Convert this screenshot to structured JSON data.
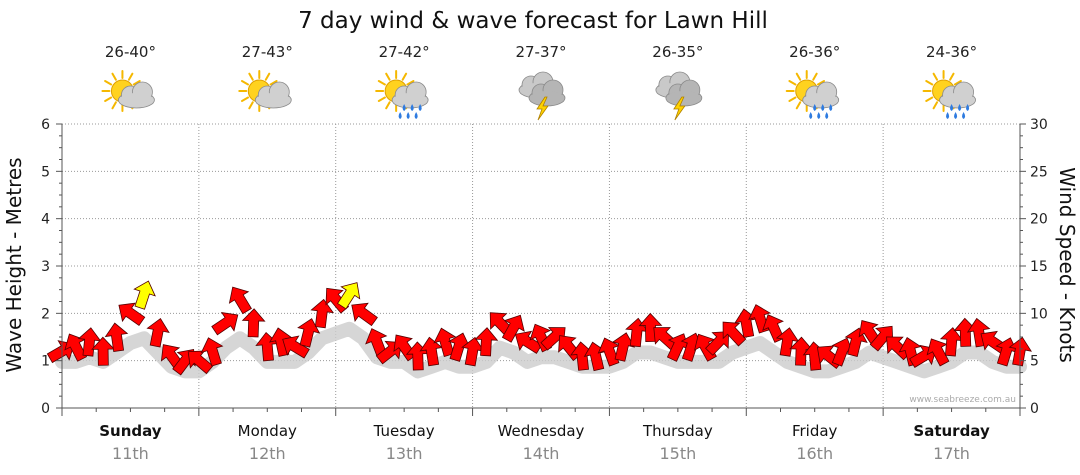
{
  "chart_data": {
    "type": "line",
    "title": "7 day wind & wave forecast for Lawn Hill",
    "ylabel_left": "Wave Height - Metres",
    "ylabel_right": "Wind Speed - Knots",
    "ylim_left": [
      0,
      6
    ],
    "ylim_right": [
      0,
      30
    ],
    "yticks_left": [
      "0",
      "1",
      "2",
      "3",
      "4",
      "5",
      "6"
    ],
    "yticks_right": [
      "0",
      "5",
      "10",
      "15",
      "20",
      "25",
      "30"
    ],
    "grid": true,
    "watermark": "www.seabreeze.com.au",
    "days": [
      {
        "name": "Sunday",
        "date": "11th",
        "temp": "26-40°",
        "icon": "sun-cloud-icon",
        "bold": true
      },
      {
        "name": "Monday",
        "date": "12th",
        "temp": "27-43°",
        "icon": "sun-cloud-icon",
        "bold": false
      },
      {
        "name": "Tuesday",
        "date": "13th",
        "temp": "27-42°",
        "icon": "sun-cloud-rain-icon",
        "bold": false
      },
      {
        "name": "Wednesday",
        "date": "14th",
        "temp": "27-37°",
        "icon": "storm-icon",
        "bold": false
      },
      {
        "name": "Thursday",
        "date": "15th",
        "temp": "26-35°",
        "icon": "storm-icon",
        "bold": false
      },
      {
        "name": "Friday",
        "date": "16th",
        "temp": "26-36°",
        "icon": "sun-cloud-rain-icon",
        "bold": false
      },
      {
        "name": "Saturday",
        "date": "17th",
        "temp": "24-36°",
        "icon": "sun-cloud-rain-icon",
        "bold": true
      }
    ],
    "series": [
      {
        "name": "Wind Speed (knots)",
        "axis": "right",
        "color": "#ff0000",
        "highlight_color": "#ffff00",
        "highlight_threshold": 12,
        "x_days": [
          0.0,
          0.1,
          0.2,
          0.3,
          0.4,
          0.5,
          0.6,
          0.7,
          0.8,
          0.9,
          1.0,
          1.1,
          1.2,
          1.3,
          1.4,
          1.5,
          1.6,
          1.7,
          1.8,
          1.9,
          2.0,
          2.1,
          2.2,
          2.3,
          2.4,
          2.5,
          2.6,
          2.7,
          2.8,
          2.9,
          3.0,
          3.1,
          3.2,
          3.3,
          3.4,
          3.5,
          3.6,
          3.7,
          3.8,
          3.9,
          4.0,
          4.1,
          4.2,
          4.3,
          4.4,
          4.5,
          4.6,
          4.7,
          4.8,
          4.9,
          5.0,
          5.1,
          5.2,
          5.3,
          5.4,
          5.5,
          5.6,
          5.7,
          5.8,
          5.9,
          6.0,
          6.1,
          6.2,
          6.3,
          6.4,
          6.5,
          6.6,
          6.7,
          6.8,
          6.9,
          7.0
        ],
        "values": [
          6,
          6.5,
          7,
          6,
          7.5,
          10,
          12,
          8,
          5.5,
          5,
          5,
          6,
          9,
          11.5,
          9,
          6.5,
          7,
          6.5,
          8,
          10,
          11.5,
          12,
          10,
          7,
          6,
          6.5,
          5.5,
          6,
          7,
          6.5,
          6,
          7,
          9,
          8.5,
          7,
          7.5,
          7.5,
          6.5,
          5.5,
          5.5,
          6,
          6.5,
          8,
          8.5,
          7.5,
          6.5,
          6.5,
          6.5,
          7,
          8,
          9,
          9.5,
          8.5,
          7,
          6,
          5.5,
          5.5,
          6,
          7,
          8,
          7.5,
          6.5,
          6,
          5.5,
          6,
          7,
          8,
          8,
          7,
          6,
          6
        ]
      },
      {
        "name": "Wave Height (m)",
        "axis": "left",
        "color": "#cccccc",
        "values": [
          1.1,
          1.1,
          1.2,
          1.1,
          1.3,
          1.5,
          1.6,
          1.3,
          1.0,
          0.9,
          0.9,
          1.1,
          1.4,
          1.6,
          1.4,
          1.1,
          1.1,
          1.1,
          1.3,
          1.6,
          1.7,
          1.8,
          1.6,
          1.2,
          1.1,
          1.1,
          0.9,
          1.0,
          1.1,
          1.0,
          1.0,
          1.1,
          1.4,
          1.3,
          1.1,
          1.2,
          1.2,
          1.1,
          1.0,
          1.0,
          1.0,
          1.1,
          1.3,
          1.3,
          1.2,
          1.1,
          1.1,
          1.1,
          1.1,
          1.3,
          1.4,
          1.5,
          1.3,
          1.1,
          1.0,
          0.9,
          0.9,
          1.0,
          1.1,
          1.3,
          1.2,
          1.1,
          1.0,
          0.9,
          1.0,
          1.1,
          1.3,
          1.3,
          1.1,
          1.0,
          1.0
        ]
      }
    ]
  }
}
